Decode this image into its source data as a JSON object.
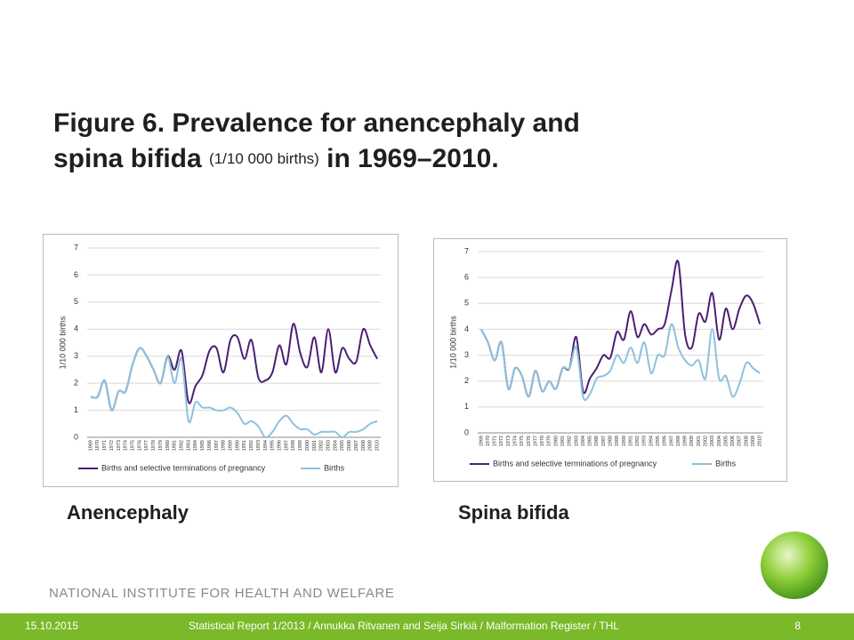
{
  "title": "Figure 6. Prevalence for anencephaly and spina bifida",
  "title_unit": "(1/10 000 births)",
  "title_period": "in 1969–2010.",
  "organization": "NATIONAL INSTITUTE FOR HEALTH AND WELFARE",
  "footer": {
    "date": "15.10.2015",
    "text": "Statistical Report 1/2013 / Annukka Ritvanen and Seija Sirkiä / Malformation Register / THL",
    "page": "8"
  },
  "chart_data": [
    {
      "type": "line",
      "title": "Anencephaly",
      "ylabel": "1/10 000 births",
      "categories": [
        "1969",
        "1970",
        "1971",
        "1972",
        "1973",
        "1974",
        "1975",
        "1976",
        "1977",
        "1978",
        "1979",
        "1980",
        "1981",
        "1982",
        "1983",
        "1984",
        "1985",
        "1986",
        "1987",
        "1988",
        "1989",
        "1990",
        "1991",
        "1992",
        "1993",
        "1994",
        "1995",
        "1996",
        "1997",
        "1998",
        "1999",
        "2000",
        "2001",
        "2002",
        "2003",
        "2004",
        "2005",
        "2006",
        "2007",
        "2008",
        "2009",
        "2010"
      ],
      "ylim": [
        0,
        7
      ],
      "yticks": [
        0,
        1,
        2,
        3,
        4,
        5,
        6,
        7
      ],
      "grid": true,
      "legend": "bottom",
      "series": [
        {
          "name": "Births and selective terminations of pregnancy",
          "color": "#4b1f74",
          "values": [
            1.5,
            1.5,
            2.1,
            1.0,
            1.7,
            1.7,
            2.7,
            3.3,
            3.0,
            2.5,
            2.0,
            3.0,
            2.5,
            3.2,
            1.3,
            1.9,
            2.3,
            3.2,
            3.3,
            2.4,
            3.6,
            3.7,
            2.9,
            3.6,
            2.2,
            2.1,
            2.4,
            3.4,
            2.7,
            4.2,
            3.1,
            2.6,
            3.7,
            2.4,
            4.0,
            2.4,
            3.3,
            2.9,
            2.8,
            4.0,
            3.4,
            2.9
          ]
        },
        {
          "name": "Births",
          "color": "#8fc1dc",
          "values": [
            1.5,
            1.5,
            2.1,
            1.0,
            1.7,
            1.7,
            2.7,
            3.3,
            3.0,
            2.5,
            2.0,
            3.0,
            2.0,
            2.9,
            0.6,
            1.3,
            1.1,
            1.1,
            1.0,
            1.0,
            1.1,
            0.9,
            0.5,
            0.6,
            0.4,
            0.0,
            0.2,
            0.6,
            0.8,
            0.5,
            0.3,
            0.3,
            0.1,
            0.2,
            0.2,
            0.2,
            0.0,
            0.2,
            0.2,
            0.3,
            0.5,
            0.6
          ]
        }
      ]
    },
    {
      "type": "line",
      "title": "Spina bifida",
      "ylabel": "1/10 000 births",
      "categories": [
        "1969",
        "1970",
        "1971",
        "1972",
        "1973",
        "1974",
        "1975",
        "1976",
        "1977",
        "1978",
        "1979",
        "1980",
        "1981",
        "1982",
        "1983",
        "1984",
        "1985",
        "1986",
        "1987",
        "1988",
        "1989",
        "1990",
        "1991",
        "1992",
        "1993",
        "1994",
        "1995",
        "1996",
        "1997",
        "1998",
        "1999",
        "2000",
        "2001",
        "2002",
        "2003",
        "2004",
        "2005",
        "2006",
        "2007",
        "2008",
        "2009",
        "2010"
      ],
      "ylim": [
        0,
        7
      ],
      "yticks": [
        0,
        1,
        2,
        3,
        4,
        5,
        6,
        7
      ],
      "grid": true,
      "legend": "bottom",
      "series": [
        {
          "name": "Births and selective terminations of pregnancy",
          "color": "#4b1f74",
          "values": [
            4.0,
            3.5,
            2.8,
            3.5,
            1.7,
            2.5,
            2.2,
            1.4,
            2.4,
            1.6,
            2.0,
            1.7,
            2.5,
            2.5,
            3.7,
            1.6,
            2.1,
            2.5,
            3.0,
            2.9,
            3.9,
            3.6,
            4.7,
            3.7,
            4.2,
            3.8,
            4.0,
            4.2,
            5.5,
            6.6,
            3.8,
            3.3,
            4.6,
            4.3,
            5.4,
            3.6,
            4.8,
            4.0,
            4.8,
            5.3,
            5.0,
            4.2
          ]
        },
        {
          "name": "Births",
          "color": "#8fc1dc",
          "values": [
            4.0,
            3.5,
            2.8,
            3.5,
            1.7,
            2.5,
            2.2,
            1.4,
            2.4,
            1.6,
            2.0,
            1.7,
            2.5,
            2.5,
            3.3,
            1.4,
            1.5,
            2.1,
            2.2,
            2.4,
            3.0,
            2.7,
            3.3,
            2.7,
            3.5,
            2.3,
            3.0,
            3.0,
            4.2,
            3.3,
            2.8,
            2.6,
            2.8,
            2.1,
            4.0,
            2.1,
            2.2,
            1.4,
            1.9,
            2.7,
            2.5,
            2.3
          ]
        }
      ]
    }
  ]
}
